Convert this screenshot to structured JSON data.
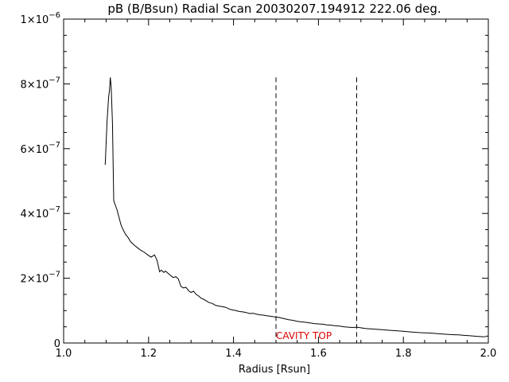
{
  "chart_data": {
    "type": "line",
    "title": "pB (B/Bsun) Radial Scan 20030207.194912 222.06 deg.",
    "xlabel": "Radius [Rsun]",
    "ylabel": "",
    "xlim": [
      1.0,
      2.0
    ],
    "ylim": [
      0,
      1e-06
    ],
    "xticks": [
      {
        "value": 1.0,
        "label": "1.0"
      },
      {
        "value": 1.2,
        "label": "1.2"
      },
      {
        "value": 1.4,
        "label": "1.4"
      },
      {
        "value": 1.6,
        "label": "1.6"
      },
      {
        "value": 1.8,
        "label": "1.8"
      },
      {
        "value": 2.0,
        "label": "2.0"
      }
    ],
    "yticks": [
      {
        "value": 0,
        "mantissa": "0",
        "exponent": ""
      },
      {
        "value": 2e-07,
        "mantissa": "2×10",
        "exponent": "−7"
      },
      {
        "value": 4e-07,
        "mantissa": "4×10",
        "exponent": "−7"
      },
      {
        "value": 6e-07,
        "mantissa": "6×10",
        "exponent": "−7"
      },
      {
        "value": 8e-07,
        "mantissa": "8×10",
        "exponent": "−7"
      },
      {
        "value": 1e-06,
        "mantissa": "1×10",
        "exponent": "−6"
      }
    ],
    "grid": false,
    "series": [
      {
        "color": "#000000",
        "x": [
          1.098,
          1.102,
          1.106,
          1.108,
          1.11,
          1.112,
          1.115,
          1.118,
          1.122,
          1.126,
          1.13,
          1.135,
          1.14,
          1.146,
          1.152,
          1.158,
          1.164,
          1.17,
          1.176,
          1.182,
          1.19,
          1.198,
          1.206,
          1.214,
          1.22,
          1.226,
          1.23,
          1.236,
          1.24,
          1.246,
          1.252,
          1.258,
          1.264,
          1.27,
          1.276,
          1.282,
          1.288,
          1.294,
          1.3,
          1.306,
          1.312,
          1.318,
          1.324,
          1.33,
          1.336,
          1.342,
          1.35,
          1.358,
          1.366,
          1.374,
          1.382,
          1.39,
          1.398,
          1.406,
          1.414,
          1.422,
          1.43,
          1.438,
          1.446,
          1.454,
          1.462,
          1.47,
          1.478,
          1.486,
          1.494,
          1.502,
          1.51,
          1.52,
          1.53,
          1.54,
          1.55,
          1.56,
          1.57,
          1.58,
          1.59,
          1.6,
          1.61,
          1.62,
          1.63,
          1.64,
          1.65,
          1.66,
          1.67,
          1.68,
          1.69,
          1.7,
          1.71,
          1.72,
          1.73,
          1.74,
          1.75,
          1.76,
          1.77,
          1.78,
          1.79,
          1.8,
          1.81,
          1.82,
          1.83,
          1.84,
          1.85,
          1.86,
          1.87,
          1.88,
          1.89,
          1.9,
          1.91,
          1.92,
          1.93,
          1.94,
          1.95,
          1.96,
          1.97,
          1.98,
          1.99,
          2.0
        ],
        "y": [
          5.5e-07,
          6.8e-07,
          7.6e-07,
          7.8e-07,
          8.2e-07,
          7.9e-07,
          6.8e-07,
          4.4e-07,
          4.25e-07,
          4.1e-07,
          3.9e-07,
          3.65e-07,
          3.5e-07,
          3.35e-07,
          3.25e-07,
          3.12e-07,
          3.05e-07,
          2.98e-07,
          2.92e-07,
          2.86e-07,
          2.8e-07,
          2.72e-07,
          2.65e-07,
          2.72e-07,
          2.55e-07,
          2.2e-07,
          2.25e-07,
          2.18e-07,
          2.22e-07,
          2.15e-07,
          2.08e-07,
          2.02e-07,
          2.05e-07,
          1.98e-07,
          1.75e-07,
          1.7e-07,
          1.72e-07,
          1.62e-07,
          1.56e-07,
          1.6e-07,
          1.5e-07,
          1.45e-07,
          1.38e-07,
          1.35e-07,
          1.3e-07,
          1.25e-07,
          1.22e-07,
          1.16e-07,
          1.14e-07,
          1.12e-07,
          1.1e-07,
          1.05e-07,
          1.02e-07,
          1e-07,
          9.7e-08,
          9.6e-08,
          9.4e-08,
          9.1e-08,
          9.2e-08,
          8.9e-08,
          8.7e-08,
          8.6e-08,
          8.4e-08,
          8.3e-08,
          8.1e-08,
          8e-08,
          7.8e-08,
          7.5e-08,
          7.2e-08,
          7e-08,
          6.7e-08,
          6.5e-08,
          6.4e-08,
          6.2e-08,
          6e-08,
          5.9e-08,
          5.8e-08,
          5.6e-08,
          5.5e-08,
          5.3e-08,
          5.2e-08,
          5e-08,
          4.9e-08,
          4.8e-08,
          4.9e-08,
          4.7e-08,
          4.5e-08,
          4.4e-08,
          4.3e-08,
          4.2e-08,
          4.1e-08,
          4e-08,
          3.9e-08,
          3.8e-08,
          3.7e-08,
          3.6e-08,
          3.5e-08,
          3.4e-08,
          3.3e-08,
          3.2e-08,
          3.15e-08,
          3.1e-08,
          3e-08,
          2.9e-08,
          2.8e-08,
          2.7e-08,
          2.6e-08,
          2.55e-08,
          2.5e-08,
          2.4e-08,
          2.3e-08,
          2.2e-08,
          2.1e-08,
          2e-08,
          1.9e-08,
          2.2e-08
        ]
      }
    ],
    "markers": [
      {
        "x": 1.5,
        "style": "dashed",
        "y_top": 8.2e-07
      },
      {
        "x": 1.69,
        "style": "dashed",
        "y_top": 8.2e-07
      }
    ],
    "annotations": [
      {
        "text": "CAVITY TOP",
        "x": 1.5,
        "y": 2.2e-08,
        "color": "#dd0000"
      }
    ]
  }
}
